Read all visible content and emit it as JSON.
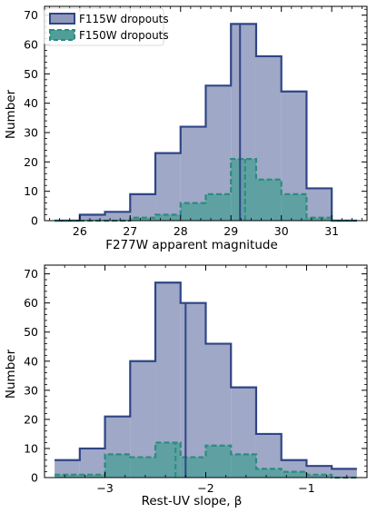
{
  "colors": {
    "f115_fill": "#8f99bd",
    "f115_edge": "#2f4587",
    "f150_fill": "#4f9f98",
    "f150_edge": "#2b8c7f",
    "axis": "#000000",
    "background": "#ffffff"
  },
  "chart_data": [
    {
      "type": "histogram",
      "xlabel": "F277W apparent magnitude",
      "ylabel": "Number",
      "xlim": [
        25.3,
        31.7
      ],
      "ylim": [
        0,
        73
      ],
      "xticks": [
        26,
        27,
        28,
        29,
        30,
        31
      ],
      "yticks": [
        0,
        10,
        20,
        30,
        40,
        50,
        60,
        70
      ],
      "legend": {
        "placement": "top-left",
        "entries": [
          "F115W dropouts",
          "F150W dropouts"
        ]
      },
      "series": [
        {
          "name": "F115W dropouts",
          "bin_edges": [
            25.5,
            26.0,
            26.5,
            27.0,
            27.5,
            28.0,
            28.5,
            29.0,
            29.5,
            30.0,
            30.5,
            31.0,
            31.5
          ],
          "counts": [
            0,
            2,
            3,
            9,
            23,
            32,
            46,
            67,
            56,
            44,
            11,
            0
          ],
          "median_line": 29.18
        },
        {
          "name": "F150W dropouts",
          "bin_edges": [
            25.5,
            26.0,
            26.5,
            27.0,
            27.5,
            28.0,
            28.5,
            29.0,
            29.5,
            30.0,
            30.5,
            31.0,
            31.5
          ],
          "counts": [
            0,
            0,
            0,
            1,
            2,
            6,
            9,
            21,
            14,
            9,
            1,
            0
          ],
          "median_line": 29.28
        }
      ]
    },
    {
      "type": "histogram",
      "xlabel": "Rest-UV slope, β",
      "ylabel": "Number",
      "xlim": [
        -3.6,
        -0.4
      ],
      "ylim": [
        0,
        73
      ],
      "xticks": [
        -3,
        -2,
        -1
      ],
      "xtick_labels": [
        "−3",
        "−2",
        "−1"
      ],
      "yticks": [
        0,
        10,
        20,
        30,
        40,
        50,
        60,
        70
      ],
      "series": [
        {
          "name": "F115W dropouts",
          "bin_edges": [
            -3.5,
            -3.25,
            -3.0,
            -2.75,
            -2.5,
            -2.25,
            -2.0,
            -1.75,
            -1.5,
            -1.25,
            -1.0,
            -0.75,
            -0.5
          ],
          "counts": [
            6,
            10,
            21,
            40,
            67,
            60,
            46,
            31,
            15,
            6,
            4,
            3
          ],
          "median_line": -2.2
        },
        {
          "name": "F150W dropouts",
          "bin_edges": [
            -3.5,
            -3.25,
            -3.0,
            -2.75,
            -2.5,
            -2.25,
            -2.0,
            -1.75,
            -1.5,
            -1.25,
            -1.0,
            -0.75,
            -0.5
          ],
          "counts": [
            1,
            1,
            8,
            7,
            12,
            7,
            11,
            8,
            3,
            2,
            1,
            0
          ],
          "median_line": -2.3
        }
      ]
    }
  ]
}
